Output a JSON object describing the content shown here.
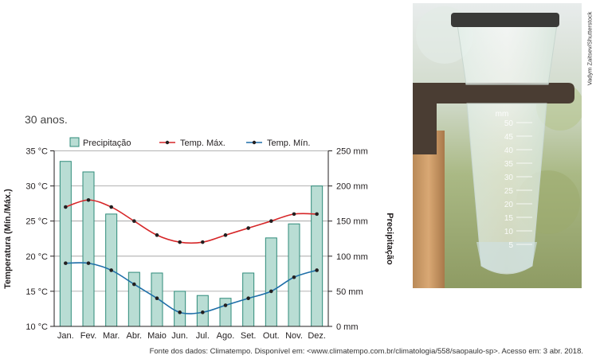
{
  "intro_text": "30 anos.",
  "chart_data": {
    "type": "bar",
    "title": "",
    "categories": [
      "Jan.",
      "Fev.",
      "Mar.",
      "Abr.",
      "Maio",
      "Jun.",
      "Jul.",
      "Ago.",
      "Set.",
      "Out.",
      "Nov.",
      "Dez."
    ],
    "series": [
      {
        "name": "Precipitação",
        "type": "bar",
        "axis": "right",
        "color": "#b9ddd4",
        "values": [
          235,
          220,
          160,
          77,
          76,
          50,
          44,
          40,
          76,
          126,
          146,
          200
        ]
      },
      {
        "name": "Temp. Máx.",
        "type": "line",
        "axis": "left",
        "color": "#d62628",
        "values": [
          27,
          28,
          27,
          25,
          23,
          22,
          22,
          23,
          24,
          25,
          26,
          26
        ]
      },
      {
        "name": "Temp. Mín.",
        "type": "line",
        "axis": "left",
        "color": "#1f6fa8",
        "values": [
          19,
          19,
          18,
          16,
          14,
          12,
          12,
          13,
          14,
          15,
          17,
          18
        ]
      }
    ],
    "ylabel_left": "Temperatura (Mín./Máx.)",
    "ylabel_right": "Precipitação",
    "ylim_left": [
      10,
      35
    ],
    "ylim_right": [
      0,
      250
    ],
    "yticks_left": [
      "10 °C",
      "15 °C",
      "20 °C",
      "25 °C",
      "30 °C",
      "35 °C"
    ],
    "yticks_right": [
      "0 mm",
      "50 mm",
      "100 mm",
      "150 mm",
      "200 mm",
      "250 mm"
    ],
    "grid": true,
    "legend_position": "top"
  },
  "photo": {
    "description_icon": "rain-gauge-photo",
    "credit": "Vadym Zaitsev/Shutterstock",
    "gauge_scale": [
      "50",
      "45",
      "40",
      "35",
      "30",
      "25",
      "20",
      "15",
      "10",
      "5"
    ],
    "gauge_unit": "mm"
  },
  "source_text": "Fonte dos dados: Climatempo. Disponível em: <www.climatempo.com.br/climatologia/558/saopaulo-sp>. Acesso em: 3 abr. 2018."
}
